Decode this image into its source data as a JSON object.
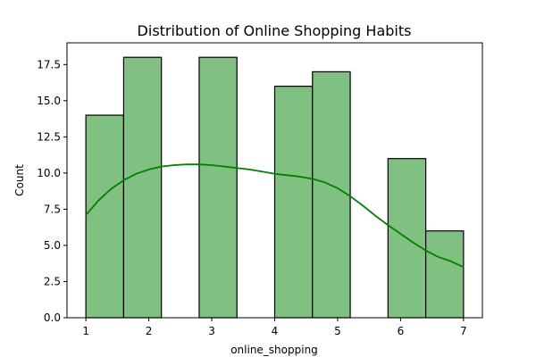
{
  "chart_data": {
    "type": "bar",
    "title": "Distribution of Online Shopping Habits",
    "xlabel": "online_shopping",
    "ylabel": "Count",
    "xlim": [
      0.7,
      7.3
    ],
    "ylim": [
      0,
      19
    ],
    "xticks": [
      1,
      2,
      3,
      4,
      5,
      6,
      7
    ],
    "yticks": [
      0.0,
      2.5,
      5.0,
      7.5,
      10.0,
      12.5,
      15.0,
      17.5
    ],
    "ytick_labels": [
      "0.0",
      "2.5",
      "5.0",
      "7.5",
      "10.0",
      "12.5",
      "15.0",
      "17.5"
    ],
    "bins": [
      {
        "x0": 1.0,
        "x1": 1.6,
        "count": 14
      },
      {
        "x0": 1.6,
        "x1": 2.2,
        "count": 18
      },
      {
        "x0": 2.2,
        "x1": 2.8,
        "count": 0
      },
      {
        "x0": 2.8,
        "x1": 3.4,
        "count": 18
      },
      {
        "x0": 3.4,
        "x1": 4.0,
        "count": 0
      },
      {
        "x0": 4.0,
        "x1": 4.6,
        "count": 16
      },
      {
        "x0": 4.6,
        "x1": 5.2,
        "count": 17
      },
      {
        "x0": 5.2,
        "x1": 5.8,
        "count": 0
      },
      {
        "x0": 5.8,
        "x1": 6.4,
        "count": 11
      },
      {
        "x0": 6.4,
        "x1": 7.0,
        "count": 6
      }
    ],
    "kde": {
      "x": [
        1.0,
        1.2,
        1.4,
        1.6,
        1.8,
        2.0,
        2.2,
        2.4,
        2.6,
        2.8,
        3.0,
        3.2,
        3.4,
        3.6,
        3.8,
        4.0,
        4.2,
        4.4,
        4.6,
        4.8,
        5.0,
        5.2,
        5.4,
        5.6,
        5.8,
        6.0,
        6.2,
        6.4,
        6.6,
        6.8,
        7.0
      ],
      "y": [
        7.1,
        8.1,
        8.9,
        9.5,
        9.95,
        10.25,
        10.45,
        10.55,
        10.6,
        10.6,
        10.55,
        10.45,
        10.35,
        10.25,
        10.1,
        9.95,
        9.85,
        9.75,
        9.6,
        9.35,
        8.95,
        8.4,
        7.75,
        7.05,
        6.4,
        5.8,
        5.2,
        4.65,
        4.2,
        3.9,
        3.5
      ]
    },
    "colors": {
      "bar_fill": "#80c080",
      "bar_edge": "#000000",
      "kde_line": "#008000"
    },
    "grid": false,
    "legend": "none"
  }
}
